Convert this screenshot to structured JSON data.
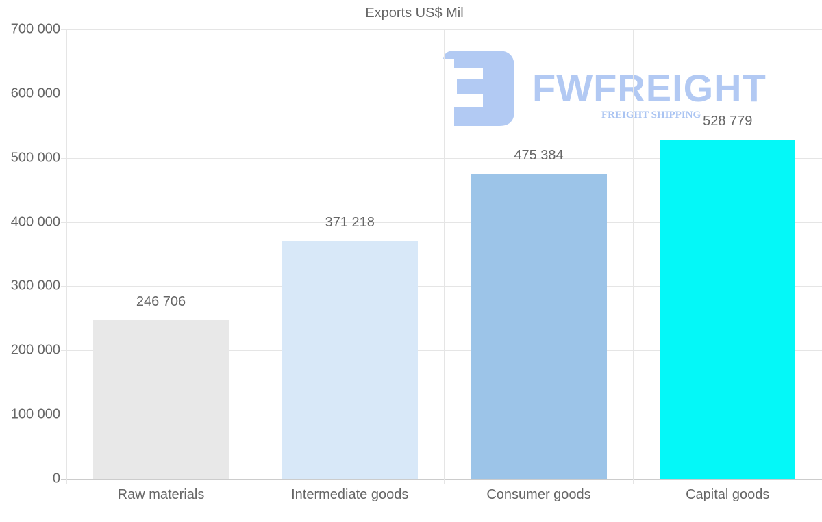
{
  "title": "Exports US$ Mil",
  "watermark": {
    "logo_text": "FWFREIGHT",
    "tagline": "FREIGHT SHIPPING",
    "color": "#aac4f2"
  },
  "y_ticks": [
    "700 000",
    "600 000",
    "500 000",
    "400 000",
    "300 000",
    "200 000",
    "100 000",
    "0"
  ],
  "bars": [
    {
      "category": "Raw materials",
      "value": 246706,
      "label": "246 706",
      "color": "#e8e8e8"
    },
    {
      "category": "Intermediate goods",
      "value": 371218,
      "label": "371 218",
      "color": "#d8e8f8"
    },
    {
      "category": "Consumer goods",
      "value": 475384,
      "label": "475 384",
      "color": "#9cc4e8"
    },
    {
      "category": "Capital goods",
      "value": 528779,
      "label": "528 779",
      "color": "#04f8f8"
    }
  ],
  "chart_data": {
    "type": "bar",
    "title": "Exports US$ Mil",
    "categories": [
      "Raw materials",
      "Intermediate goods",
      "Consumer goods",
      "Capital goods"
    ],
    "values": [
      246706,
      371218,
      475384,
      528779
    ],
    "colors": [
      "#e8e8e8",
      "#d8e8f8",
      "#9cc4e8",
      "#04f8f8"
    ],
    "xlabel": "",
    "ylabel": "",
    "ylim": [
      0,
      700000
    ],
    "yticks": [
      0,
      100000,
      200000,
      300000,
      400000,
      500000,
      600000,
      700000
    ],
    "grid": true,
    "data_labels": true,
    "legend": "none"
  }
}
